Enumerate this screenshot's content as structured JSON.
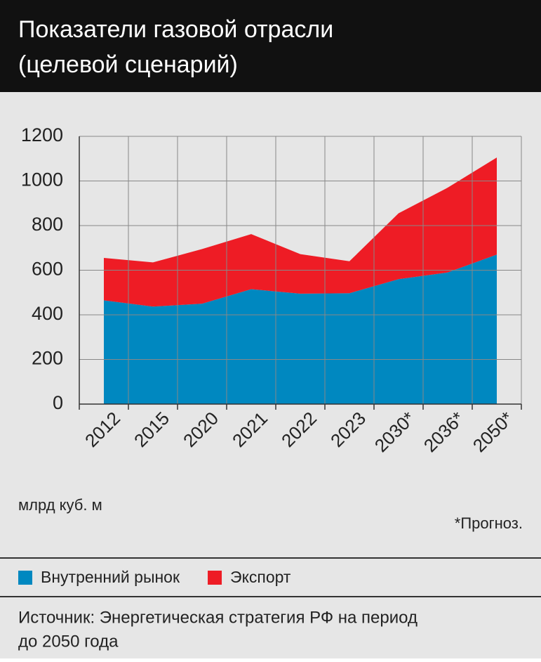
{
  "chart_data": {
    "type": "stacked_area",
    "title": [
      "Показатели газовой отрасли",
      "(целевой сценарий)"
    ],
    "categories": [
      "2012",
      "2015",
      "2020",
      "2021",
      "2022",
      "2023",
      "2030*",
      "2036*",
      "2050*"
    ],
    "series": [
      {
        "name": "Внутренний рынок",
        "color": "#0088c0",
        "values": [
          465,
          437,
          450,
          515,
          495,
          497,
          560,
          590,
          670
        ]
      },
      {
        "name": "Экспорт",
        "color": "#ee1c25",
        "values": [
          190,
          198,
          245,
          247,
          177,
          143,
          295,
          380,
          435
        ]
      }
    ],
    "ylim": [
      0,
      1200
    ],
    "yticks": [
      0,
      200,
      400,
      600,
      800,
      1000,
      1200
    ],
    "grid": true,
    "unit": "млрд куб. м",
    "note": "*Прогноз.",
    "source": [
      "Источник: Энергетическая стратегия РФ на период",
      "до 2050 года"
    ]
  }
}
